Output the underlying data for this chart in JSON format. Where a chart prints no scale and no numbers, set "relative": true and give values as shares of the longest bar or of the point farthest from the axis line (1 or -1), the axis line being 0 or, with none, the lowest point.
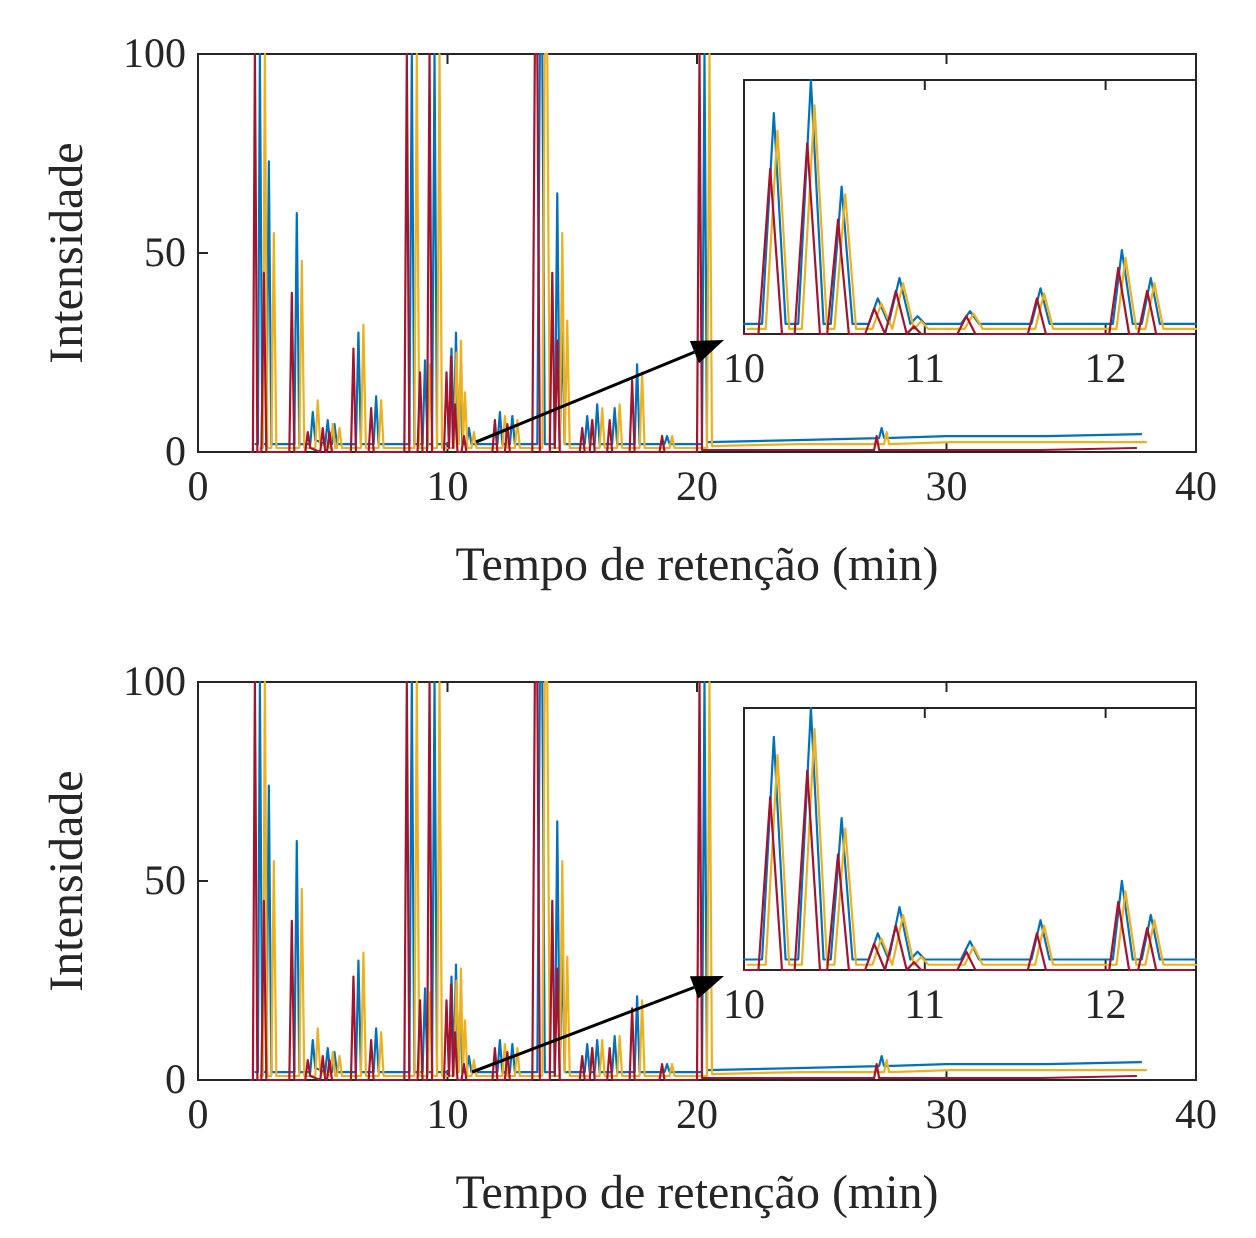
{
  "chart_data": [
    {
      "type": "line",
      "xlabel": "Tempo de retenção (min)",
      "ylabel": "Intensidade",
      "xlim": [
        0,
        40
      ],
      "ylim": [
        0,
        100
      ],
      "xticks": [
        0,
        10,
        20,
        30,
        40
      ],
      "yticks": [
        0,
        50,
        100
      ],
      "series": [
        {
          "color": "#0072bd",
          "x": [
            2.3,
            2.4,
            2.48,
            2.58,
            2.74,
            2.84,
            2.94,
            3.86,
            3.96,
            4.06,
            4.5,
            4.6,
            4.7,
            5.1,
            5.2,
            5.3,
            5.37,
            5.47,
            5.57,
            6.33,
            6.43,
            6.53,
            7.04,
            7.14,
            7.24,
            8.47,
            8.57,
            8.67,
            9.0,
            9.1,
            9.2,
            9.38,
            9.48,
            9.58,
            10.06,
            10.16,
            10.26,
            10.34,
            10.42,
            10.5,
            10.6,
            10.76,
            10.86,
            10.96,
            12.0,
            12.1,
            12.2,
            12.5,
            12.6,
            12.7,
            13.6,
            13.7,
            13.8,
            13.9,
            14.3,
            14.4,
            14.5,
            14.6,
            14.7,
            15.5,
            15.6,
            15.7,
            15.9,
            16.0,
            16.1,
            16.6,
            16.7,
            16.8,
            17.5,
            17.6,
            17.7,
            18.7,
            18.8,
            18.9,
            20.2,
            20.3,
            20.4,
            24,
            27.3,
            27.4,
            27.5,
            30,
            34,
            37.8
          ],
          "values": [
            2,
            2,
            100,
            2,
            2,
            73,
            2,
            2,
            60,
            2,
            2,
            10,
            3,
            2,
            8,
            2,
            2,
            7,
            2,
            2,
            30,
            2,
            2,
            14,
            2,
            2,
            100,
            2,
            2,
            23,
            2,
            2,
            100,
            2,
            2,
            26,
            3,
            30,
            3,
            17,
            2,
            2,
            6,
            2,
            2,
            10,
            2,
            2,
            9,
            2,
            2,
            100,
            100,
            2,
            2,
            65,
            3,
            30,
            2,
            2,
            9,
            2,
            2,
            12,
            2,
            2,
            11,
            2,
            2,
            22,
            2,
            2,
            4,
            2,
            2,
            100,
            2.5,
            3,
            3.5,
            6,
            3.5,
            4,
            4,
            4.5
          ]
        },
        {
          "color": "#edb120",
          "x": [
            2.5,
            2.6,
            2.68,
            2.78,
            2.94,
            3.04,
            3.14,
            4.06,
            4.16,
            4.26,
            4.7,
            4.8,
            4.9,
            5.3,
            5.4,
            5.5,
            5.57,
            5.67,
            5.77,
            6.53,
            6.63,
            6.73,
            7.24,
            7.34,
            7.44,
            8.67,
            8.77,
            8.87,
            9.2,
            9.3,
            9.4,
            9.58,
            9.68,
            9.78,
            10.26,
            10.36,
            10.46,
            10.54,
            10.62,
            10.7,
            10.8,
            10.96,
            11.06,
            11.16,
            12.2,
            12.3,
            12.4,
            12.7,
            12.8,
            12.9,
            13.8,
            13.9,
            14.0,
            14.1,
            14.5,
            14.6,
            14.7,
            14.8,
            14.9,
            15.7,
            15.8,
            15.9,
            16.1,
            16.2,
            16.3,
            16.8,
            16.9,
            17.0,
            17.7,
            17.8,
            17.9,
            18.9,
            19.0,
            19.1,
            20.4,
            20.5,
            20.6,
            24.2,
            27.5,
            27.6,
            27.7,
            30.2,
            34.2,
            38.0
          ],
          "values": [
            1,
            1,
            100,
            1,
            1,
            55,
            1,
            1,
            48,
            1,
            1,
            13,
            2,
            1,
            7,
            1,
            1,
            6,
            1,
            1,
            32,
            1,
            1,
            13,
            1,
            1,
            100,
            1,
            1,
            22,
            1,
            1,
            100,
            1,
            1,
            25,
            2,
            28,
            2,
            15,
            1,
            1,
            5,
            1,
            1,
            9,
            1,
            1,
            8,
            1,
            1,
            100,
            100,
            1,
            1,
            55,
            2,
            33,
            1,
            1,
            8,
            1,
            1,
            11,
            1,
            1,
            12,
            1,
            1,
            20,
            1,
            1,
            4,
            1,
            1,
            100,
            1.5,
            2,
            2,
            5,
            2,
            2.5,
            2.5,
            2.5
          ]
        },
        {
          "color": "#a2142f",
          "x": [
            2.1,
            2.2,
            2.28,
            2.38,
            2.54,
            2.64,
            2.74,
            3.66,
            3.76,
            3.86,
            4.3,
            4.4,
            4.5,
            4.9,
            5.0,
            5.1,
            5.17,
            5.27,
            5.37,
            6.13,
            6.23,
            6.33,
            6.84,
            6.94,
            7.04,
            8.27,
            8.37,
            8.47,
            8.8,
            8.9,
            9.0,
            9.18,
            9.28,
            9.38,
            9.86,
            9.96,
            10.06,
            10.14,
            10.22,
            10.3,
            10.4,
            10.56,
            10.66,
            10.76,
            11.8,
            11.9,
            12.0,
            12.3,
            12.4,
            12.5,
            13.4,
            13.5,
            13.6,
            13.7,
            14.1,
            14.2,
            14.3,
            14.4,
            14.5,
            15.3,
            15.4,
            15.5,
            15.7,
            15.8,
            15.9,
            16.4,
            16.5,
            16.6,
            17.3,
            17.4,
            17.5,
            18.5,
            18.6,
            18.7,
            20.0,
            20.1,
            20.2,
            23.8,
            27.1,
            27.2,
            27.3,
            29.8,
            33.8,
            37.6
          ],
          "values": [
            0,
            0,
            100,
            0,
            0,
            45,
            0,
            0,
            40,
            0,
            0,
            5,
            1,
            0,
            6,
            0,
            0,
            5,
            0,
            0,
            26,
            0,
            0,
            11,
            0,
            0,
            100,
            0,
            0,
            20,
            0,
            0,
            100,
            0,
            0,
            20,
            1,
            24,
            1,
            12,
            0,
            0,
            4,
            0,
            0,
            8,
            0,
            0,
            7,
            0,
            0,
            100,
            100,
            0,
            0,
            45,
            1,
            28,
            0,
            0,
            6,
            0,
            0,
            8,
            0,
            0,
            8,
            0,
            0,
            18,
            0,
            0,
            4,
            0,
            0,
            100,
            0.5,
            0.5,
            0.5,
            4,
            0.5,
            0.5,
            0.5,
            1
          ]
        }
      ]
    },
    {
      "type": "line",
      "relative": true,
      "tick_labels": "x",
      "xlim": [
        10,
        12.5
      ],
      "xticks": [
        10,
        11,
        12
      ],
      "series": [
        {
          "color": "#0072bd",
          "x": [
            10,
            10.1,
            10.165,
            10.23,
            10.3,
            10.37,
            10.44,
            10.48,
            10.54,
            10.6,
            10.69,
            10.74,
            10.8,
            10.86,
            10.92,
            10.96,
            11.0,
            11.2,
            11.25,
            11.3,
            11.59,
            11.64,
            11.69,
            12.04,
            12.09,
            12.15,
            12.2,
            12.25,
            12.3,
            12.5
          ],
          "values": [
            0.04,
            0.04,
            0.87,
            0.04,
            0.04,
            1,
            0.04,
            0.04,
            0.58,
            0.04,
            0.04,
            0.14,
            0.04,
            0.22,
            0.04,
            0.07,
            0.04,
            0.04,
            0.09,
            0.04,
            0.04,
            0.18,
            0.04,
            0.04,
            0.33,
            0.04,
            0.04,
            0.22,
            0.04,
            0.04
          ]
        },
        {
          "color": "#edb120",
          "x": [
            10.02,
            10.12,
            10.185,
            10.25,
            10.32,
            10.39,
            10.46,
            10.5,
            10.56,
            10.62,
            10.71,
            10.76,
            10.82,
            10.88,
            10.94,
            10.98,
            11.02,
            11.22,
            11.27,
            11.32,
            11.61,
            11.66,
            11.71,
            12.06,
            12.11,
            12.17,
            12.22,
            12.27,
            12.32,
            12.5
          ],
          "values": [
            0.02,
            0.02,
            0.8,
            0.02,
            0.02,
            0.9,
            0.02,
            0.02,
            0.55,
            0.02,
            0.02,
            0.12,
            0.02,
            0.2,
            0.02,
            0.05,
            0.02,
            0.02,
            0.08,
            0.02,
            0.02,
            0.16,
            0.02,
            0.02,
            0.3,
            0.02,
            0.02,
            0.2,
            0.02,
            0.02
          ]
        },
        {
          "color": "#a2142f",
          "x": [
            10,
            10.08,
            10.145,
            10.21,
            10.28,
            10.35,
            10.42,
            10.46,
            10.52,
            10.58,
            10.67,
            10.72,
            10.78,
            10.84,
            10.9,
            10.94,
            10.98,
            11.18,
            11.23,
            11.28,
            11.57,
            11.62,
            11.67,
            12.02,
            12.07,
            12.13,
            12.18,
            12.23,
            12.28,
            12.48
          ],
          "values": [
            0,
            0,
            0.65,
            0,
            0,
            0.75,
            0,
            0,
            0.45,
            0,
            0,
            0.1,
            0,
            0.17,
            0,
            0.03,
            0,
            0,
            0.07,
            0,
            0,
            0.14,
            0,
            0,
            0.26,
            0,
            0,
            0.17,
            0,
            0
          ]
        }
      ]
    },
    {
      "type": "line",
      "xlabel": "Tempo de retenção (min)",
      "ylabel": "Intensidade",
      "xlim": [
        0,
        40
      ],
      "ylim": [
        0,
        100
      ],
      "xticks": [
        0,
        10,
        20,
        30,
        40
      ],
      "yticks": [
        0,
        50,
        100
      ],
      "series": [
        {
          "color": "#0072bd",
          "x": [
            2.3,
            2.4,
            2.48,
            2.58,
            2.74,
            2.84,
            2.94,
            3.86,
            3.96,
            4.06,
            4.5,
            4.6,
            4.7,
            5.1,
            5.2,
            5.3,
            5.37,
            5.47,
            5.57,
            6.33,
            6.43,
            6.53,
            7.04,
            7.14,
            7.24,
            8.47,
            8.57,
            8.67,
            9.0,
            9.1,
            9.2,
            9.38,
            9.48,
            9.58,
            10.06,
            10.16,
            10.26,
            10.34,
            10.42,
            10.5,
            10.6,
            10.76,
            10.86,
            10.96,
            12.0,
            12.1,
            12.2,
            12.5,
            12.6,
            12.7,
            13.6,
            13.7,
            13.8,
            13.9,
            14.3,
            14.4,
            14.5,
            14.6,
            14.7,
            15.5,
            15.6,
            15.7,
            15.9,
            16.0,
            16.1,
            16.6,
            16.7,
            16.8,
            17.5,
            17.6,
            17.7,
            18.7,
            18.8,
            18.9,
            20.2,
            20.3,
            20.4,
            24,
            27.3,
            27.4,
            27.5,
            30,
            34,
            37.8
          ],
          "values": [
            2,
            2,
            100,
            2,
            2,
            74,
            2,
            2,
            60,
            2,
            2,
            10,
            3,
            2,
            8,
            2,
            2,
            7,
            2,
            2,
            30,
            2,
            2,
            13,
            2,
            2,
            100,
            2,
            2,
            23,
            2,
            2,
            100,
            2,
            2,
            26,
            3,
            29,
            3,
            17,
            2,
            2,
            6,
            2,
            2,
            10,
            2,
            2,
            9,
            2,
            2,
            100,
            100,
            2,
            2,
            65,
            3,
            32,
            2,
            2,
            9,
            2,
            2,
            10,
            2,
            2,
            11,
            2,
            2,
            21,
            2,
            2,
            4,
            2,
            2,
            100,
            2.5,
            3,
            3.5,
            6,
            3.5,
            4,
            4,
            4.5
          ]
        },
        {
          "color": "#edb120",
          "x": [
            2.5,
            2.6,
            2.68,
            2.78,
            2.94,
            3.04,
            3.14,
            4.06,
            4.16,
            4.26,
            4.7,
            4.8,
            4.9,
            5.3,
            5.4,
            5.5,
            5.57,
            5.67,
            5.77,
            6.53,
            6.63,
            6.73,
            7.24,
            7.34,
            7.44,
            8.67,
            8.77,
            8.87,
            9.2,
            9.3,
            9.4,
            9.58,
            9.68,
            9.78,
            10.26,
            10.36,
            10.46,
            10.54,
            10.62,
            10.7,
            10.8,
            10.96,
            11.06,
            11.16,
            12.2,
            12.3,
            12.4,
            12.7,
            12.8,
            12.9,
            13.8,
            13.9,
            14.0,
            14.1,
            14.5,
            14.6,
            14.7,
            14.8,
            14.9,
            15.7,
            15.8,
            15.9,
            16.1,
            16.2,
            16.3,
            16.8,
            16.9,
            17.0,
            17.7,
            17.8,
            17.9,
            18.9,
            19.0,
            19.1,
            20.4,
            20.5,
            20.6,
            24.2,
            27.5,
            27.6,
            27.7,
            30.2,
            34.2,
            38.0
          ],
          "values": [
            1,
            1,
            100,
            1,
            1,
            55,
            1,
            1,
            48,
            1,
            1,
            13,
            2,
            1,
            7,
            1,
            1,
            6,
            1,
            1,
            32,
            1,
            1,
            12,
            1,
            1,
            100,
            1,
            1,
            22,
            1,
            1,
            100,
            1,
            1,
            25,
            2,
            28,
            2,
            15,
            1,
            1,
            5,
            1,
            1,
            9,
            1,
            1,
            8,
            1,
            1,
            100,
            100,
            1,
            1,
            55,
            2,
            31,
            1,
            1,
            8,
            1,
            1,
            10,
            1,
            1,
            11,
            1,
            1,
            20,
            1,
            1,
            4,
            1,
            1,
            100,
            1.5,
            2,
            2,
            5,
            2,
            2.5,
            2.5,
            2.5
          ]
        },
        {
          "color": "#a2142f",
          "x": [
            2.1,
            2.2,
            2.28,
            2.38,
            2.54,
            2.64,
            2.74,
            3.66,
            3.76,
            3.86,
            4.3,
            4.4,
            4.5,
            4.9,
            5.0,
            5.1,
            5.17,
            5.27,
            5.37,
            6.13,
            6.23,
            6.33,
            6.84,
            6.94,
            7.04,
            8.27,
            8.37,
            8.47,
            8.8,
            8.9,
            9.0,
            9.18,
            9.28,
            9.38,
            9.86,
            9.96,
            10.06,
            10.14,
            10.22,
            10.3,
            10.4,
            10.56,
            10.66,
            10.76,
            11.8,
            11.9,
            12.0,
            12.3,
            12.4,
            12.5,
            13.4,
            13.5,
            13.6,
            13.7,
            14.1,
            14.2,
            14.3,
            14.4,
            14.5,
            15.3,
            15.4,
            15.5,
            15.7,
            15.8,
            15.9,
            16.4,
            16.5,
            16.6,
            17.3,
            17.4,
            17.5,
            18.5,
            18.6,
            18.7,
            20.0,
            20.1,
            20.2,
            23.8,
            27.1,
            27.2,
            27.3,
            29.8,
            33.8,
            37.6
          ],
          "values": [
            0,
            0,
            100,
            0,
            0,
            45,
            0,
            0,
            40,
            0,
            0,
            5,
            1,
            0,
            6,
            0,
            0,
            5,
            0,
            0,
            26,
            0,
            0,
            10,
            0,
            0,
            100,
            0,
            0,
            20,
            0,
            0,
            100,
            0,
            0,
            20,
            1,
            24,
            1,
            12,
            0,
            0,
            4,
            0,
            0,
            8,
            0,
            0,
            7,
            0,
            0,
            100,
            100,
            0,
            0,
            45,
            1,
            28,
            0,
            0,
            6,
            0,
            0,
            8,
            0,
            0,
            8,
            0,
            0,
            18,
            0,
            0,
            4,
            0,
            0,
            100,
            0.5,
            0.5,
            0.5,
            4,
            0.5,
            0.5,
            0.5,
            1
          ]
        }
      ]
    },
    {
      "type": "line",
      "relative": true,
      "tick_labels": "x",
      "xlim": [
        10,
        12.5
      ],
      "xticks": [
        10,
        11,
        12
      ],
      "series": [
        {
          "color": "#0072bd",
          "x": [
            10,
            10.1,
            10.165,
            10.23,
            10.3,
            10.37,
            10.44,
            10.48,
            10.54,
            10.6,
            10.69,
            10.74,
            10.8,
            10.86,
            10.92,
            10.96,
            11.0,
            11.2,
            11.25,
            11.3,
            11.59,
            11.64,
            11.69,
            12.04,
            12.09,
            12.15,
            12.2,
            12.25,
            12.3,
            12.5
          ],
          "values": [
            0.04,
            0.04,
            0.89,
            0.04,
            0.04,
            1,
            0.04,
            0.04,
            0.58,
            0.04,
            0.04,
            0.14,
            0.04,
            0.24,
            0.04,
            0.07,
            0.04,
            0.04,
            0.11,
            0.04,
            0.04,
            0.19,
            0.04,
            0.04,
            0.34,
            0.04,
            0.04,
            0.21,
            0.04,
            0.04
          ]
        },
        {
          "color": "#edb120",
          "x": [
            10.02,
            10.12,
            10.185,
            10.25,
            10.32,
            10.39,
            10.46,
            10.5,
            10.56,
            10.62,
            10.71,
            10.76,
            10.82,
            10.88,
            10.94,
            10.98,
            11.02,
            11.22,
            11.27,
            11.32,
            11.61,
            11.66,
            11.71,
            12.06,
            12.11,
            12.17,
            12.22,
            12.27,
            12.32,
            12.5
          ],
          "values": [
            0.02,
            0.02,
            0.82,
            0.02,
            0.02,
            0.92,
            0.02,
            0.02,
            0.54,
            0.02,
            0.02,
            0.12,
            0.02,
            0.21,
            0.02,
            0.05,
            0.02,
            0.02,
            0.09,
            0.02,
            0.02,
            0.17,
            0.02,
            0.02,
            0.3,
            0.02,
            0.02,
            0.19,
            0.02,
            0.02
          ]
        },
        {
          "color": "#a2142f",
          "x": [
            10,
            10.08,
            10.145,
            10.21,
            10.28,
            10.35,
            10.42,
            10.46,
            10.52,
            10.58,
            10.67,
            10.72,
            10.78,
            10.84,
            10.9,
            10.94,
            10.98,
            11.18,
            11.23,
            11.28,
            11.57,
            11.62,
            11.67,
            12.02,
            12.07,
            12.13,
            12.18,
            12.23,
            12.28,
            12.48
          ],
          "values": [
            0,
            0,
            0.66,
            0,
            0,
            0.76,
            0,
            0,
            0.44,
            0,
            0,
            0.1,
            0,
            0.17,
            0,
            0.03,
            0,
            0,
            0.07,
            0,
            0,
            0.14,
            0,
            0,
            0.26,
            0,
            0,
            0.16,
            0,
            0
          ]
        }
      ]
    }
  ]
}
